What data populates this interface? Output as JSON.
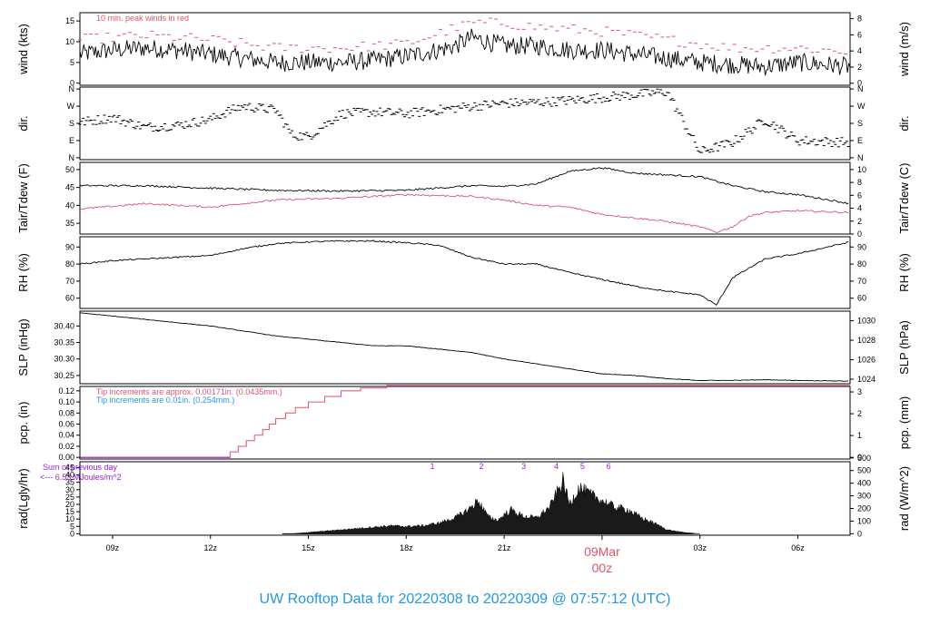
{
  "colors": {
    "red": "#DF536B",
    "blue": "#2297E6",
    "purple": "#9A1EE0",
    "black": "#000000"
  },
  "footer": "UW Rooftop Data for 20220308  to  20220309 @ 07:57:12  (UTC)",
  "chart_data": {
    "type": "line",
    "x_axis": {
      "ticks": [
        "09z",
        "12z",
        "15z",
        "18z",
        "21z",
        "03z",
        "06z"
      ],
      "date_label": "09Mar",
      "date_sublabel": "00z"
    },
    "panels": [
      {
        "id": "wind",
        "ylabel_left": "wind (kts)",
        "ylabel_right": "wind (m/s)",
        "left_ticks": [
          "0",
          "5",
          "10",
          "15"
        ],
        "right_ticks": [
          "0",
          "2",
          "4",
          "6",
          "8"
        ],
        "annotation": "10 min. peak winds in red",
        "series": [
          {
            "name": "wind speed",
            "x_hours": [
              8.0,
              9.0,
              10.0,
              11.0,
              12.0,
              13.0,
              14.0,
              15.0,
              16.0,
              17.0,
              18.0,
              19.0,
              19.5,
              20.0,
              20.5,
              21.0,
              22.0,
              23.0,
              24.0,
              25.0,
              26.0,
              27.0,
              28.0,
              29.0,
              30.0,
              31.6
            ],
            "y": [
              7,
              8,
              8.5,
              8,
              7,
              6,
              5,
              5,
              5,
              5.5,
              6.5,
              8,
              9,
              11,
              10,
              9,
              9,
              8,
              8,
              7,
              6,
              5,
              4.5,
              4,
              5,
              4
            ]
          },
          {
            "name": "10 min. peak",
            "x_hours": [
              8.0,
              10.0,
              12.0,
              14.0,
              16.0,
              18.0,
              20.0,
              21.0,
              22.0,
              24.0,
              26.0,
              28.0,
              30.0,
              31.6
            ],
            "y": [
              10,
              11,
              10,
              8,
              8,
              9,
              14,
              14,
              13,
              12,
              10,
              8,
              8,
              7
            ]
          }
        ]
      },
      {
        "id": "dir",
        "ylabel_left": "dir.",
        "ylabel_right": "dir.",
        "left_ticks": [
          "N",
          "E",
          "S",
          "W",
          "N"
        ],
        "right_ticks": [
          "N",
          "E",
          "S",
          "W",
          "N"
        ],
        "series": [
          {
            "name": "direction",
            "x_hours": [
              8.0,
              9.0,
              10.0,
              11.0,
              12.0,
              12.5,
              13.0,
              14.0,
              14.5,
              15.0,
              16.0,
              17.0,
              18.0,
              19.0,
              20.0,
              21.0,
              22.0,
              23.0,
              24.0,
              25.0,
              26.0,
              27.0,
              28.0,
              29.0,
              30.0,
              31.6
            ],
            "y": [
              185,
              210,
              160,
              170,
              200,
              240,
              270,
              250,
              120,
              110,
              230,
              240,
              230,
              250,
              270,
              285,
              290,
              300,
              315,
              330,
              345,
              30,
              80,
              200,
              90,
              80
            ]
          }
        ]
      },
      {
        "id": "temp",
        "ylabel_left": "Tair/Tdew (F)",
        "ylabel_right": "Tair/Tdew (C)",
        "left_ticks": [
          "35",
          "40",
          "45",
          "50"
        ],
        "right_ticks": [
          "0",
          "2",
          "4",
          "6",
          "8",
          "10"
        ],
        "series": [
          {
            "name": "Tair",
            "x_hours": [
              8.0,
              10.0,
              12.0,
              14.0,
              16.0,
              18.0,
              20.0,
              21.0,
              22.0,
              23.0,
              24.0,
              25.0,
              26.0,
              27.0,
              28.0,
              29.0,
              30.0,
              31.6
            ],
            "y": [
              45.5,
              45.5,
              44.8,
              44.2,
              44.0,
              44.2,
              45.5,
              45.3,
              46.0,
              49.5,
              50.5,
              49.0,
              48.5,
              48.0,
              45.5,
              43.8,
              43.0,
              40.5
            ]
          },
          {
            "name": "Tdew",
            "x_hours": [
              8.0,
              10.0,
              12.0,
              14.0,
              16.0,
              18.0,
              20.0,
              21.0,
              22.0,
              23.0,
              24.0,
              25.0,
              26.0,
              27.0,
              27.5,
              28.0,
              28.5,
              29.0,
              30.0,
              31.6
            ],
            "y": [
              39.0,
              40.5,
              39.5,
              41.5,
              42.0,
              43.0,
              42.5,
              41.5,
              40.0,
              39.5,
              37.5,
              36.5,
              35.5,
              34.0,
              32.5,
              34.0,
              37.0,
              38.0,
              38.5,
              38.0
            ]
          }
        ]
      },
      {
        "id": "rh",
        "ylabel_left": "RH (%)",
        "ylabel_right": "RH (%)",
        "left_ticks": [
          "60",
          "70",
          "80",
          "90"
        ],
        "right_ticks": [
          "60",
          "70",
          "80",
          "90"
        ],
        "series": [
          {
            "name": "RH",
            "x_hours": [
              8.0,
              9.0,
              10.0,
              11.0,
              12.0,
              13.0,
              14.0,
              15.0,
              16.0,
              17.0,
              18.0,
              19.0,
              20.0,
              21.0,
              22.0,
              23.0,
              24.0,
              25.0,
              26.0,
              27.0,
              27.5,
              28.0,
              29.0,
              30.0,
              31.6
            ],
            "y": [
              80,
              82,
              83,
              84,
              85,
              89,
              92,
              93,
              93.5,
              93.5,
              92.5,
              91,
              84,
              80,
              80,
              75,
              71,
              67,
              64,
              62,
              56,
              72,
              83,
              86,
              93
            ]
          }
        ]
      },
      {
        "id": "slp",
        "ylabel_left": "SLP (inHg)",
        "ylabel_right": "SLP (hPa)",
        "left_ticks": [
          "30.25",
          "30.30",
          "30.35",
          "30.40"
        ],
        "right_ticks": [
          "1024",
          "1026",
          "1028",
          "1030"
        ],
        "series": [
          {
            "name": "SLP",
            "x_hours": [
              8.0,
              9.0,
              10.0,
              11.0,
              12.0,
              13.0,
              14.0,
              15.0,
              16.0,
              17.0,
              18.0,
              19.0,
              20.0,
              21.0,
              22.0,
              23.0,
              24.0,
              25.0,
              26.0,
              27.0,
              28.0,
              29.0,
              30.0,
              31.6
            ],
            "y": [
              30.44,
              30.43,
              30.42,
              30.41,
              30.4,
              30.385,
              30.37,
              30.36,
              30.35,
              30.34,
              30.34,
              30.33,
              30.32,
              30.3,
              30.285,
              30.27,
              30.255,
              30.25,
              30.24,
              30.235,
              30.235,
              30.237,
              30.235,
              30.233
            ]
          }
        ]
      },
      {
        "id": "pcp",
        "ylabel_left": "pcp. (in)",
        "ylabel_right": "pcp. (mm)",
        "left_ticks": [
          "0.00",
          "0.02",
          "0.04",
          "0.06",
          "0.08",
          "0.10",
          "0.12"
        ],
        "right_ticks": [
          "0",
          "1",
          "2",
          "3"
        ],
        "annotation_red": "Tip increments are approx. 0.00171in. (0.0435mm.)",
        "annotation_blue": "Tip increments are 0.01in. (0.254mm.)",
        "series": [
          {
            "name": "pcp",
            "x_hours": [
              8.0,
              12.6,
              12.6,
              12.85,
              12.85,
              13.1,
              13.1,
              13.35,
              13.35,
              13.6,
              13.6,
              13.8,
              13.8,
              14.0,
              14.0,
              14.3,
              14.3,
              14.6,
              14.6,
              15.0,
              15.0,
              15.5,
              15.5,
              16.0,
              16.0,
              16.6,
              16.6,
              17.4,
              17.4,
              31.6
            ],
            "y": [
              0,
              0,
              0.01,
              0.01,
              0.02,
              0.02,
              0.03,
              0.03,
              0.04,
              0.04,
              0.05,
              0.05,
              0.06,
              0.06,
              0.07,
              0.07,
              0.08,
              0.08,
              0.09,
              0.09,
              0.1,
              0.1,
              0.11,
              0.11,
              0.12,
              0.12,
              0.125,
              0.125,
              0.13,
              0.13
            ]
          }
        ]
      },
      {
        "id": "rad",
        "ylabel_left": "rad(Lgly/hr)",
        "ylabel_right": "rad (W/m^2)",
        "left_ticks": [
          "0",
          "5",
          "10",
          "15",
          "20",
          "25",
          "30",
          "35",
          "40",
          "45"
        ],
        "right_ticks": [
          "0",
          "100",
          "200",
          "300",
          "400",
          "500",
          "600"
        ],
        "annotation_line1": "Sum of previous day",
        "annotation_line2": "<--- 6.53 MJoules/m^2",
        "markers": [
          "1",
          "2",
          "3",
          "4",
          "5",
          "6"
        ],
        "marker_x_hours": [
          18.8,
          20.3,
          21.6,
          22.6,
          23.4,
          24.2
        ],
        "series": [
          {
            "name": "radiation",
            "x_hours": [
              14.5,
              15.0,
              16.0,
              17.0,
              17.5,
              18.0,
              18.5,
              19.0,
              19.5,
              19.9,
              20.2,
              20.5,
              20.8,
              21.2,
              21.6,
              22.0,
              22.4,
              22.6,
              22.8,
              23.0,
              23.3,
              23.6,
              24.0,
              24.4,
              24.8,
              25.2,
              25.6,
              26.0,
              26.5,
              27.0
            ],
            "y": [
              0,
              1,
              3,
              5,
              6,
              5.5,
              6,
              8,
              12,
              18,
              25,
              13,
              10,
              18,
              13,
              12,
              20,
              30,
              40,
              22,
              35,
              30,
              25,
              20,
              18,
              12,
              8,
              3,
              1,
              0
            ]
          }
        ]
      }
    ]
  }
}
